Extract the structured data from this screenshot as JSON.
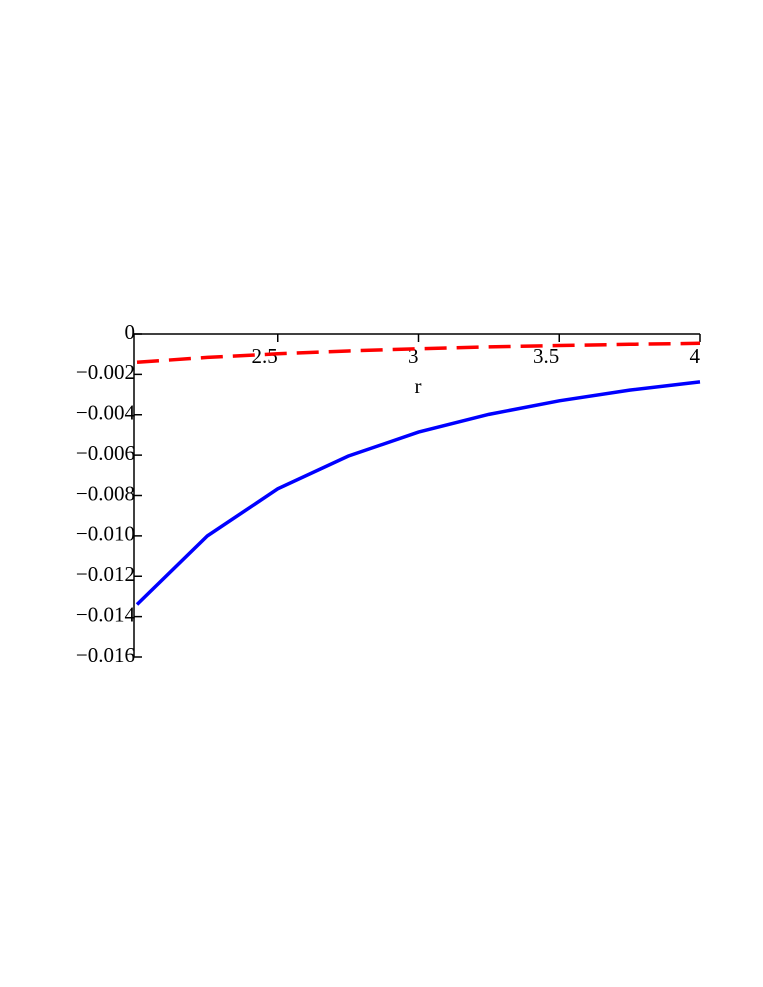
{
  "chart_data": {
    "type": "line",
    "x_label": "r",
    "x": [
      2,
      2.25,
      2.5,
      2.75,
      3,
      3.25,
      3.5,
      3.75,
      4
    ],
    "series": [
      {
        "color": "#0000ff",
        "style": "solid",
        "values": [
          -0.0134,
          -0.01,
          -0.00767,
          -0.00605,
          -0.00486,
          -0.00398,
          -0.00331,
          -0.00278,
          -0.00237
        ]
      },
      {
        "color": "#ff0000",
        "style": "dash",
        "values": [
          -0.0014,
          -0.00116,
          -0.00098,
          -0.00084,
          -0.00073,
          -0.00064,
          -0.00057,
          -0.00051,
          -0.00046
        ]
      }
    ],
    "xlim": [
      2,
      4
    ],
    "xticks": [
      2.5,
      3,
      3.5,
      4
    ],
    "ylim": [
      -0.016,
      0
    ],
    "yticks": [
      0,
      {
        "value": -0.002,
        "label": "−0.002"
      },
      {
        "value": -0.004,
        "label": "−0.004"
      },
      {
        "value": -0.006,
        "label": "−0.006"
      },
      {
        "value": -0.008,
        "label": "−0.008"
      },
      {
        "value": -0.01,
        "label": "−0.010"
      },
      {
        "value": -0.012,
        "label": "−0.012"
      },
      {
        "value": -0.014,
        "label": "−0.014"
      },
      {
        "value": -0.016,
        "label": "−0.016"
      }
    ]
  }
}
